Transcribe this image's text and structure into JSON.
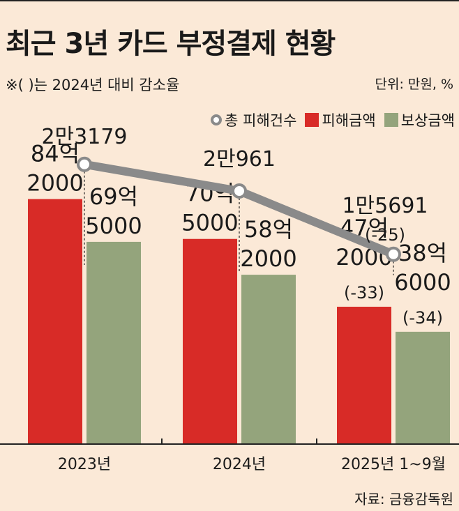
{
  "header": {
    "title": "최근 3년 카드 부정결제 현황",
    "subtitle": "※( )는 2024년 대비 감소율",
    "unit": "단위: 만원, %"
  },
  "legend": {
    "cases": "총 피해건수",
    "damage": "피해금액",
    "compensation": "보상금액"
  },
  "colors": {
    "background": "#fbe9d7",
    "damage": "#d82b27",
    "compensation": "#94a47c",
    "line": "#8a8a8a"
  },
  "chart_data": {
    "type": "bar",
    "title": "최근 3년 카드 부정결제 현황",
    "categories": [
      "2023년",
      "2024년",
      "2025년 1~9월"
    ],
    "series": [
      {
        "name": "피해금액",
        "type": "bar",
        "values": [
          842000,
          705000,
          472000
        ],
        "labels": [
          [
            "84억",
            "2000"
          ],
          [
            "70억",
            "5000"
          ],
          [
            "47억",
            "2000",
            "(-33)"
          ]
        ]
      },
      {
        "name": "보상금액",
        "type": "bar",
        "values": [
          695000,
          582000,
          386000
        ],
        "labels": [
          [
            "69억",
            "5000"
          ],
          [
            "58억",
            "2000"
          ],
          [
            "38억",
            "6000",
            "(-34)"
          ]
        ]
      },
      {
        "name": "총 피해건수",
        "type": "line",
        "values": [
          23179,
          20961,
          15691
        ],
        "labels": [
          [
            "2만3179"
          ],
          [
            "2만961"
          ],
          [
            "1만5691",
            "(-25)"
          ]
        ]
      }
    ],
    "ylim_bar": [
      0,
      1150000
    ],
    "ylim_line": [
      0,
      27000
    ],
    "grid": false,
    "legend_position": "top-right"
  },
  "source": "자료: 금융감독원"
}
